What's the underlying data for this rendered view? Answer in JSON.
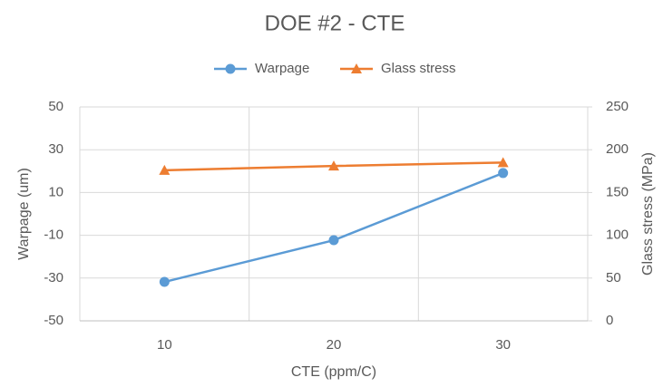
{
  "chart_data": {
    "type": "line",
    "title": "DOE #2 - CTE",
    "x_label": "CTE (ppm/C)",
    "y_label": "Warpage (um)",
    "y2_label": "Glass stress (MPa)",
    "categories": [
      "10",
      "20",
      "30"
    ],
    "series": [
      {
        "name": "Warpage",
        "color": "#5b9bd5",
        "marker": "circle",
        "values": [
          -31.8,
          -12.3,
          19.1
        ]
      },
      {
        "name": "Glass stress",
        "color": "#ed7d31",
        "marker": "triangle",
        "axis": "y2",
        "values": [
          176,
          181,
          185
        ]
      }
    ],
    "ylim": [
      -50,
      50
    ],
    "yticks": [
      -50,
      -30,
      -10,
      10,
      30,
      50
    ],
    "y2lim": [
      0,
      250
    ],
    "y2ticks": [
      0,
      50,
      100,
      150,
      200,
      250
    ],
    "grid": true,
    "legend": "top"
  }
}
